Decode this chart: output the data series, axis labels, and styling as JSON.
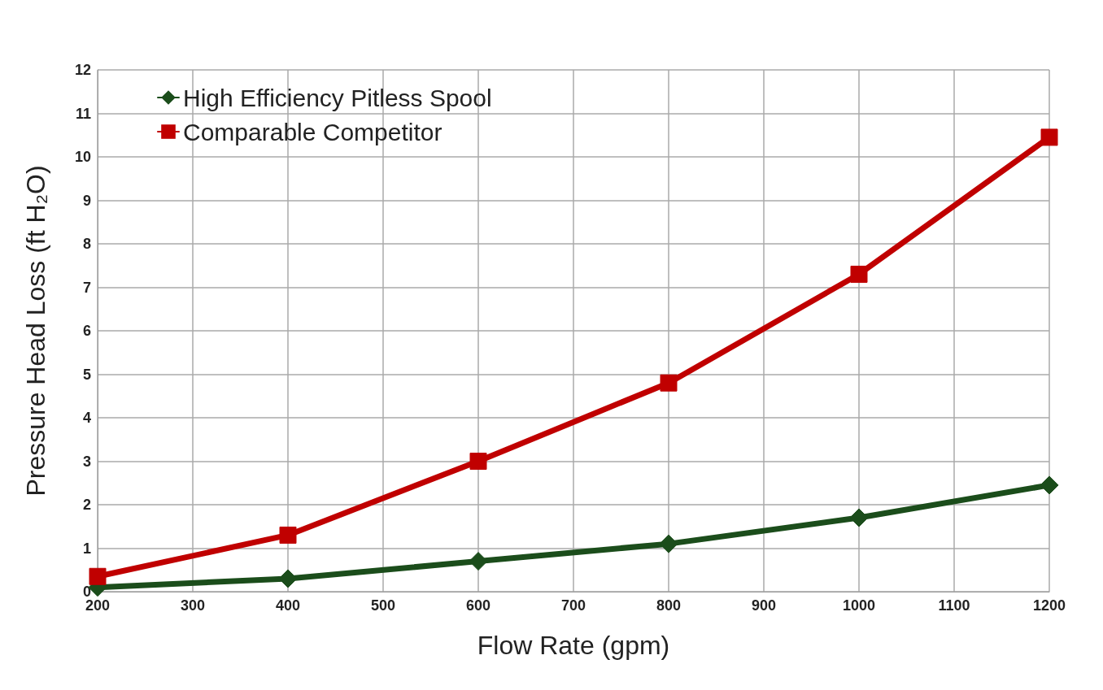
{
  "chart_data": {
    "type": "line",
    "xlabel": "Flow Rate (gpm)",
    "ylabel": "Pressure Head Loss (ft H₂O)",
    "x": [
      200,
      400,
      600,
      800,
      1000,
      1200
    ],
    "series": [
      {
        "name": "High Efficiency Pitless Spool",
        "color": "#1b4d1b",
        "marker": "diamond",
        "values": [
          0.1,
          0.3,
          0.7,
          1.1,
          1.7,
          2.45
        ]
      },
      {
        "name": "Comparable Competitor",
        "color": "#c00000",
        "marker": "square",
        "values": [
          0.35,
          1.3,
          3.0,
          4.8,
          7.3,
          10.45
        ]
      }
    ],
    "xlim": [
      200,
      1200
    ],
    "xticks": [
      200,
      300,
      400,
      500,
      600,
      700,
      800,
      900,
      1000,
      1100,
      1200
    ],
    "ylim": [
      0,
      12
    ],
    "yticks": [
      0,
      1,
      2,
      3,
      4,
      5,
      6,
      7,
      8,
      9,
      10,
      11,
      12
    ],
    "grid": true,
    "legend": "top left",
    "line_style": "solid"
  }
}
